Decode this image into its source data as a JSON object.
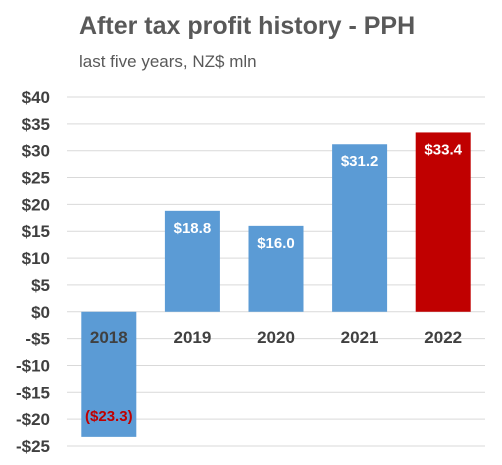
{
  "chart_data": {
    "type": "bar",
    "title": "After tax profit history - PPH",
    "subtitle": "last five years, NZ$ mln",
    "categories": [
      "2018",
      "2019",
      "2020",
      "2021",
      "2022"
    ],
    "values": [
      -23.3,
      18.8,
      16.0,
      31.2,
      33.4
    ],
    "data_labels": [
      "($23.3)",
      "$18.8",
      "$16.0",
      "$31.2",
      "$33.4"
    ],
    "bar_colors": [
      "#5B9BD5",
      "#5B9BD5",
      "#5B9BD5",
      "#5B9BD5",
      "#C00000"
    ],
    "label_colors": [
      "#C00000",
      "#FFFFFF",
      "#FFFFFF",
      "#FFFFFF",
      "#FFFFFF"
    ],
    "ylim": [
      -25,
      40
    ],
    "y_ticks": [
      40,
      35,
      30,
      25,
      20,
      15,
      10,
      5,
      0,
      -5,
      -10,
      -15,
      -20,
      -25
    ],
    "y_tick_labels": [
      "$40",
      "$35",
      "$30",
      "$25",
      "$20",
      "$15",
      "$10",
      "$5",
      "$0",
      "-$5",
      "-$10",
      "-$15",
      "-$20",
      "-$25"
    ],
    "xlabel": "",
    "ylabel": "",
    "grid": true,
    "legend": "none",
    "gridline_color": "#D9D9D9",
    "text_color": "#404040"
  }
}
